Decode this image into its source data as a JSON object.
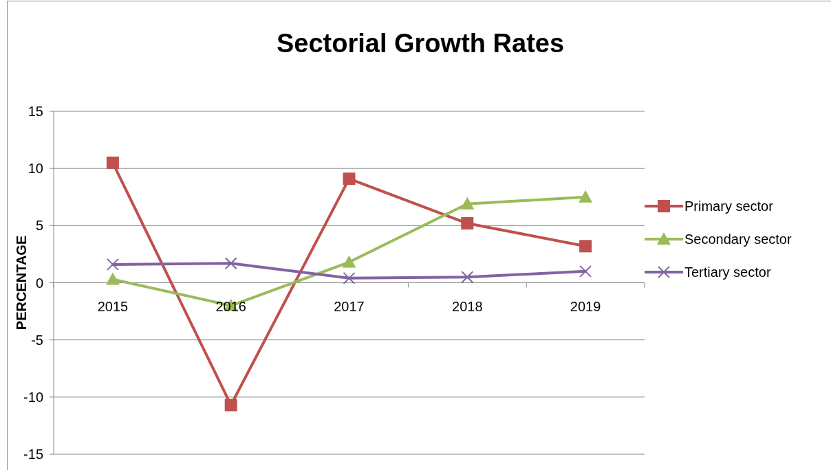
{
  "chart_data": {
    "type": "line",
    "title": "Sectorial Growth Rates",
    "ylabel": "PERCENTAGE",
    "categories": [
      "2015",
      "2016",
      "2017",
      "2018",
      "2019"
    ],
    "series": [
      {
        "name": "Primary sector",
        "color": "#c0504d",
        "marker": "square",
        "values": [
          10.5,
          -10.7,
          9.1,
          5.2,
          3.2
        ]
      },
      {
        "name": "Secondary sector",
        "color": "#9bbb59",
        "marker": "triangle",
        "values": [
          0.3,
          -2.0,
          1.8,
          6.9,
          7.5
        ]
      },
      {
        "name": "Tertiary sector",
        "color": "#8064a2",
        "marker": "cross",
        "values": [
          1.6,
          1.7,
          0.4,
          0.5,
          1.0
        ]
      }
    ],
    "ylim": [
      -15,
      15
    ],
    "yticks": [
      -15,
      -10,
      -5,
      0,
      5,
      10,
      15
    ],
    "grid": "y",
    "legend": "right",
    "line_style": "solid"
  }
}
